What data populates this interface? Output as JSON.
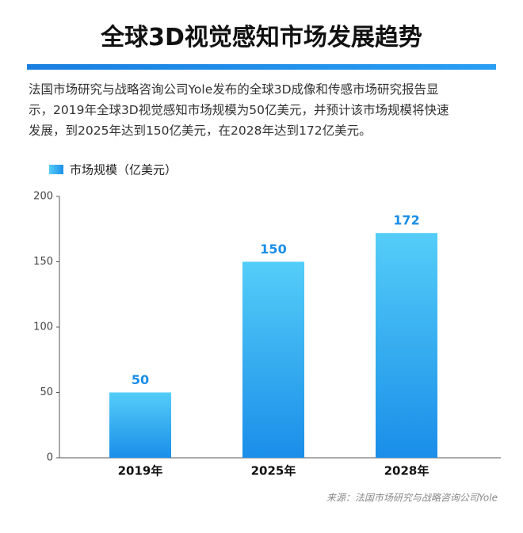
{
  "chart_data": {
    "type": "bar",
    "title": "全球3D视觉感知市场发展趋势",
    "description": [
      "法国市场研究与战略咨询公司Yole发布的全球3D成像和传感市场研究报告显",
      "示，2019年全球3D视觉感知市场规模为50亿美元，并预计该市场规模将快速",
      "发展，到2025年达到150亿美元，在2028年达到172亿美元。"
    ],
    "categories": [
      "2019年",
      "2025年",
      "2028年"
    ],
    "series": [
      {
        "name": "市场规模（亿美元）",
        "gradient": [
          "#55cdf8",
          "#1a8ee9"
        ],
        "values": [
          50,
          150,
          172
        ]
      }
    ],
    "ylim": [
      0,
      200
    ],
    "yticks": [
      0,
      50,
      100,
      150,
      200
    ],
    "source": "来源：法国市场研究与战略咨询公司Yole"
  }
}
